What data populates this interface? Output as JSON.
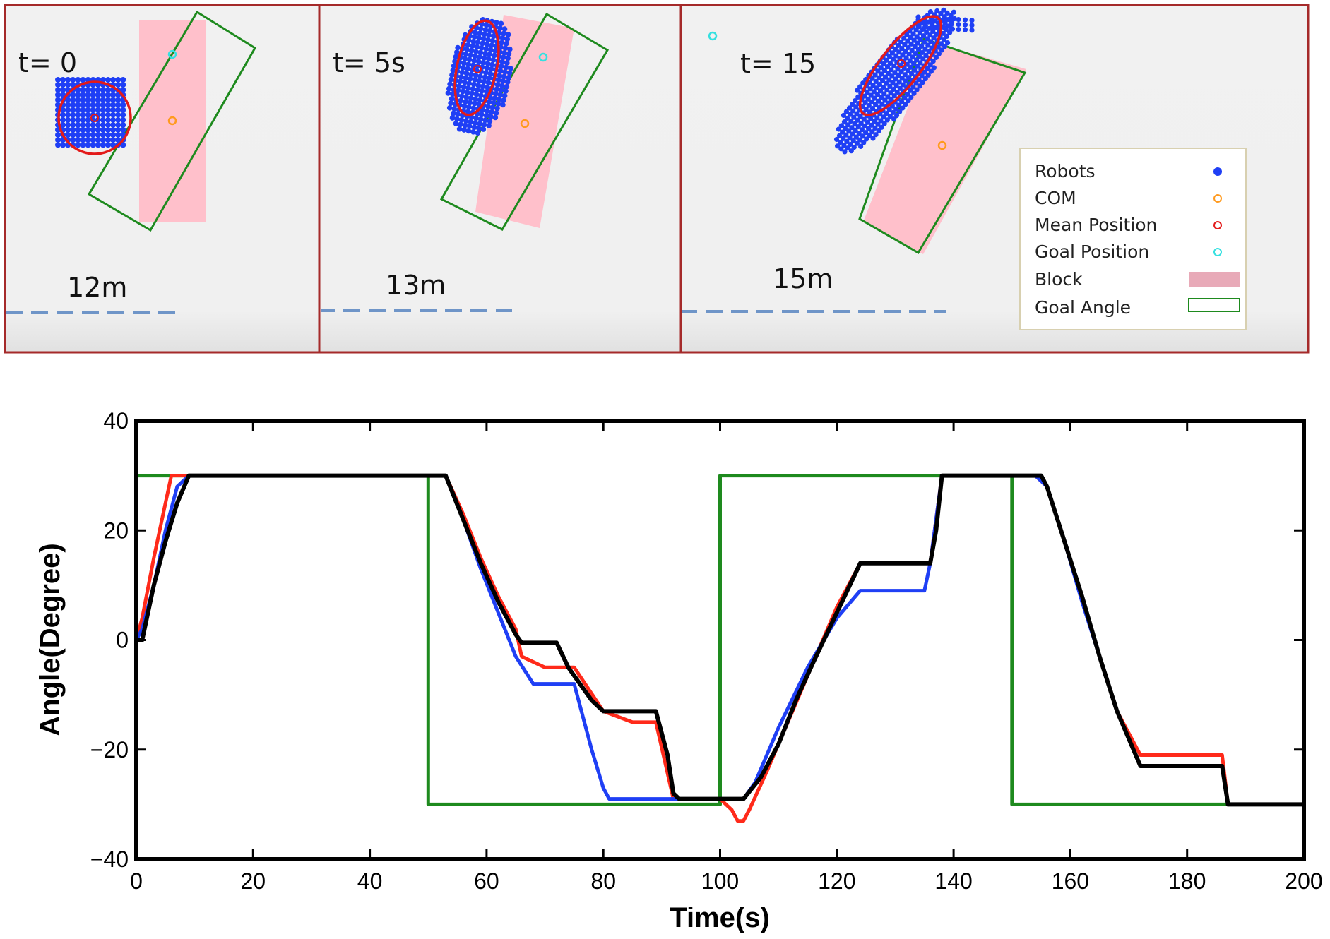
{
  "snapshots": [
    {
      "time_label": "t= 0",
      "scale_label": "12m"
    },
    {
      "time_label": "t= 5s",
      "scale_label": "13m"
    },
    {
      "time_label": "t= 15",
      "scale_label": "15m"
    }
  ],
  "legend": {
    "items": [
      {
        "label": "Robots",
        "marker": "filled-dot",
        "color": "#1f3ff5"
      },
      {
        "label": "COM",
        "marker": "hollow-circle",
        "color": "#ff9a1f"
      },
      {
        "label": "Mean Position",
        "marker": "hollow-circle",
        "color": "#e31a1a"
      },
      {
        "label": "Goal Position",
        "marker": "hollow-circle",
        "color": "#35e0e0"
      },
      {
        "label": "Block",
        "marker": "filled-rect",
        "color": "#e8aab8"
      },
      {
        "label": "Goal Angle",
        "marker": "hollow-rect",
        "color": "#1e8a1e"
      }
    ]
  },
  "colors": {
    "panel_border": "#a52a2a",
    "panel_bg": "#f1f1f1",
    "block": "#ffc0cb",
    "goal_angle": "#1e8a1e",
    "robots": "#1f3ff5",
    "mean": "#e31a1a",
    "com": "#ff9a1f",
    "goal_position": "#35e0e0",
    "scale_bar": "#6f95c8"
  },
  "chart_data": {
    "type": "line",
    "xlabel": "Time(s)",
    "ylabel": "Angle(Degree)",
    "xlim": [
      0,
      200
    ],
    "ylim": [
      -40,
      40
    ],
    "xticks": [
      0,
      20,
      40,
      60,
      80,
      100,
      120,
      140,
      160,
      180,
      200
    ],
    "yticks": [
      -40,
      -20,
      0,
      20,
      40
    ],
    "grid": false,
    "legend": "none",
    "series": [
      {
        "color": "#1e8a1e",
        "x": [
          0,
          50,
          50,
          100,
          100,
          150,
          150,
          200,
          200
        ],
        "y": [
          30,
          30,
          -30,
          -30,
          30,
          30,
          -30,
          -30,
          30
        ]
      },
      {
        "color": "#ff2a1a",
        "x": [
          0,
          1,
          3,
          5,
          6,
          8,
          20,
          40,
          50,
          53,
          56,
          59,
          62,
          65,
          66,
          70,
          75,
          80,
          85,
          89,
          92,
          93,
          100,
          102,
          103,
          104,
          105,
          108,
          112,
          116,
          120,
          124,
          128,
          132,
          136,
          137,
          138,
          140,
          145,
          150,
          154,
          156,
          159,
          162,
          165,
          168,
          172,
          180,
          186,
          187,
          188,
          200
        ],
        "y": [
          0,
          4,
          15,
          25,
          30,
          30,
          30,
          30,
          30,
          30,
          23,
          15,
          8,
          2,
          -3,
          -5,
          -5,
          -13,
          -15,
          -15,
          -29,
          -29,
          -29,
          -31,
          -33,
          -33,
          -31,
          -24,
          -14,
          -4,
          6,
          14,
          14,
          14,
          14,
          22,
          30,
          30,
          30,
          30,
          30,
          28,
          18,
          8,
          -3,
          -13,
          -21,
          -21,
          -21,
          -30,
          -30,
          -30
        ]
      },
      {
        "color": "#1f3ff5",
        "x": [
          0,
          1,
          3,
          5,
          7,
          9,
          20,
          40,
          50,
          53,
          56,
          59,
          62,
          65,
          68,
          70,
          75,
          78,
          80,
          81,
          85,
          90,
          93,
          100,
          102,
          103,
          104,
          106,
          110,
          115,
          120,
          124,
          128,
          132,
          135,
          136,
          137,
          138,
          140,
          145,
          150,
          154,
          156,
          159,
          162,
          165,
          168,
          172,
          180,
          186,
          187,
          200
        ],
        "y": [
          0,
          2,
          10,
          20,
          28,
          30,
          30,
          30,
          30,
          30,
          22,
          13,
          5,
          -3,
          -8,
          -8,
          -8,
          -20,
          -27,
          -29,
          -29,
          -29,
          -29,
          -29,
          -29,
          -29,
          -29,
          -26,
          -16,
          -5,
          4,
          9,
          9,
          9,
          9,
          14,
          22,
          30,
          30,
          30,
          30,
          30,
          28,
          18,
          7,
          -3,
          -13,
          -23,
          -23,
          -23,
          -30,
          -30
        ]
      },
      {
        "color": "#000000",
        "x": [
          0,
          1,
          2,
          3,
          5,
          7,
          9,
          20,
          40,
          50,
          53,
          56,
          59,
          62,
          65,
          66,
          70,
          72,
          74,
          76,
          78,
          80,
          85,
          89,
          91,
          92,
          93,
          100,
          101,
          102,
          103,
          104,
          107,
          110,
          113,
          116,
          120,
          124,
          128,
          132,
          136,
          137,
          138,
          140,
          145,
          150,
          154,
          155,
          156,
          159,
          162,
          165,
          168,
          172,
          180,
          186,
          187,
          200
        ],
        "y": [
          0,
          0,
          5,
          10,
          18,
          25,
          30,
          30,
          30,
          30,
          30,
          22,
          14,
          7,
          1,
          -0.5,
          -0.5,
          -0.5,
          -5,
          -8,
          -11,
          -13,
          -13,
          -13,
          -21,
          -28,
          -29,
          -29,
          -29,
          -29,
          -29,
          -29,
          -25,
          -19,
          -11,
          -4,
          5,
          14,
          14,
          14,
          14,
          20,
          30,
          30,
          30,
          30,
          30,
          30,
          28,
          18,
          8,
          -3,
          -13,
          -23,
          -23,
          -23,
          -30,
          -30
        ]
      }
    ]
  }
}
